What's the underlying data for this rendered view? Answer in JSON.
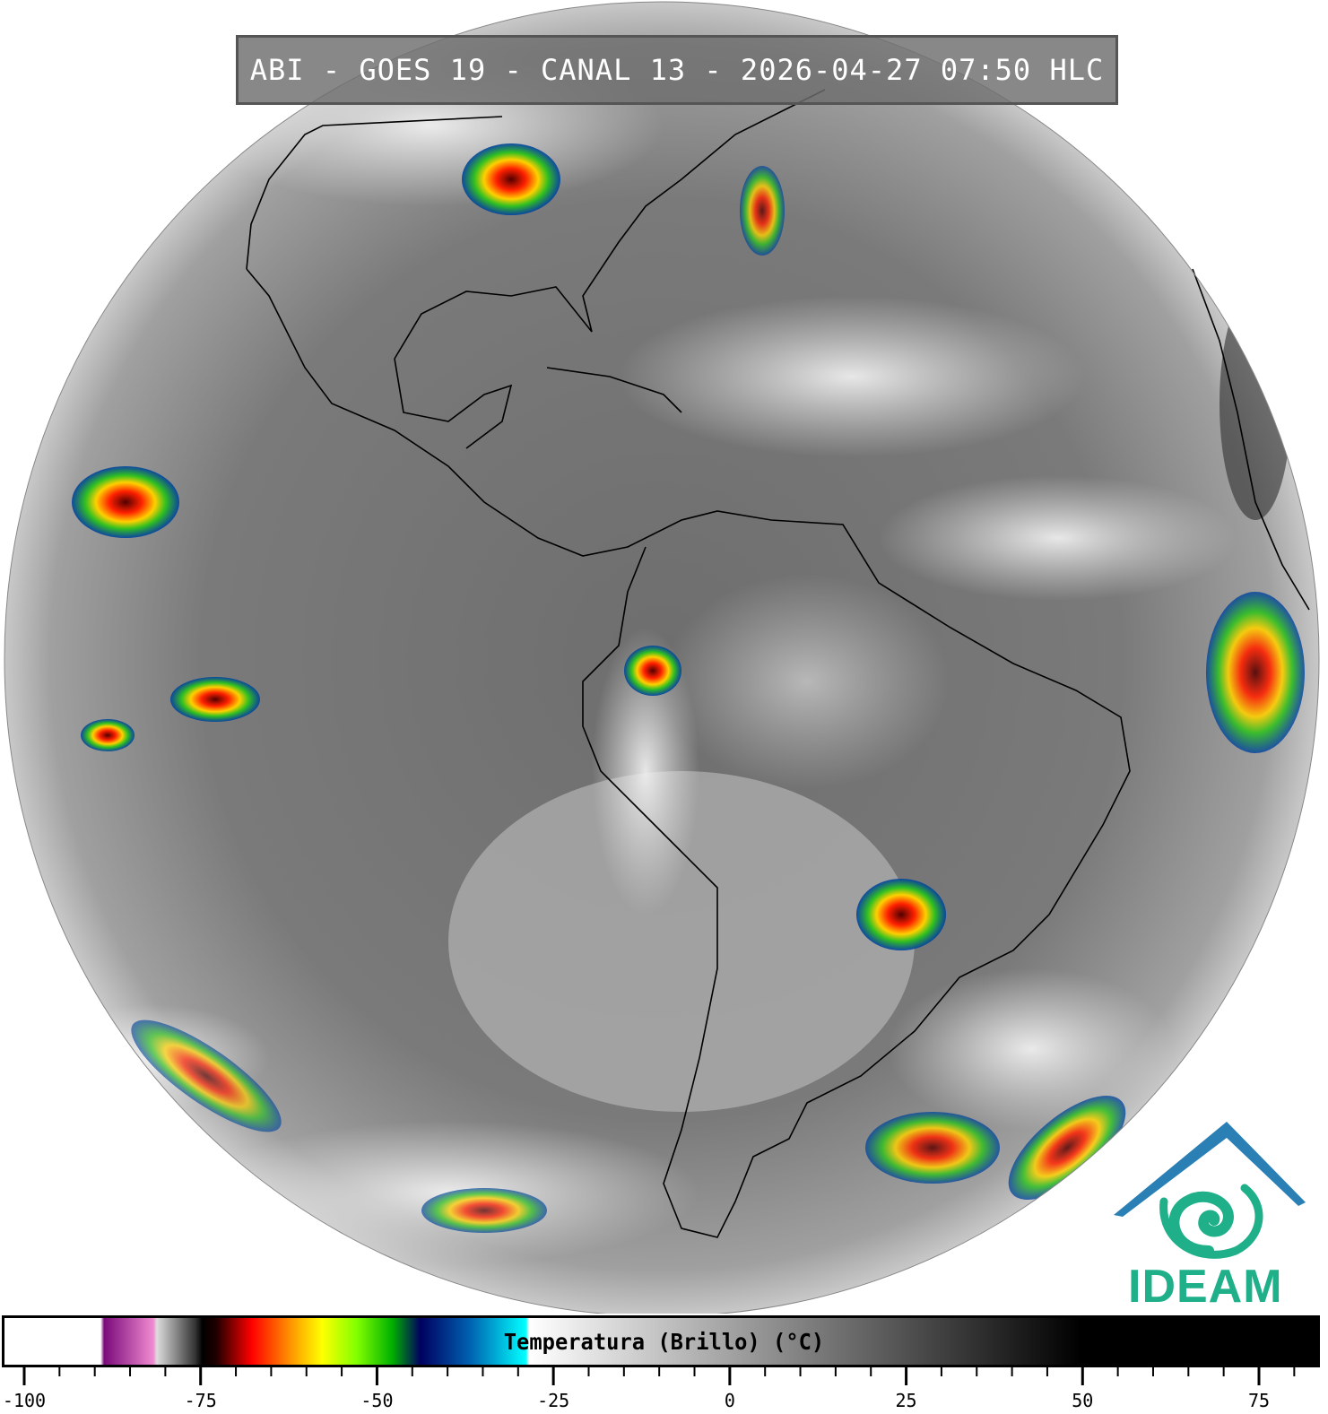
{
  "title": "ABI - GOES 19 - CANAL 13 - 2026-04-27 07:50 HLC",
  "logo": {
    "text": "IDEAM",
    "colors": {
      "roof": "#2a7fb5",
      "swirl": "#1fb08a"
    }
  },
  "colorbar": {
    "label": "Temperatura (Brillo) (°C)",
    "range": [
      -103,
      84
    ],
    "major_ticks": [
      -100,
      -75,
      -50,
      -25,
      0,
      25,
      50,
      75
    ],
    "tick_labels": [
      "-100",
      "-75",
      "-50",
      "-25",
      "0",
      "25",
      "50",
      "75"
    ],
    "minor_tick_step": 5,
    "stops": [
      {
        "t": -103,
        "color": "#ffffff"
      },
      {
        "t": -89.5,
        "color": "#ffffff"
      },
      {
        "t": -89,
        "color": "#7a0a7a"
      },
      {
        "t": -82,
        "color": "#f08ad0"
      },
      {
        "t": -81.5,
        "color": "#dddddd"
      },
      {
        "t": -76,
        "color": "#333333"
      },
      {
        "t": -75,
        "color": "#000000"
      },
      {
        "t": -73,
        "color": "#200000"
      },
      {
        "t": -68,
        "color": "#ff0000"
      },
      {
        "t": -62,
        "color": "#ffa000"
      },
      {
        "t": -58,
        "color": "#ffff00"
      },
      {
        "t": -53,
        "color": "#80ff00"
      },
      {
        "t": -48,
        "color": "#00b000"
      },
      {
        "t": -44,
        "color": "#000060"
      },
      {
        "t": -37,
        "color": "#0060b0"
      },
      {
        "t": -29,
        "color": "#00ffff"
      },
      {
        "t": -28.5,
        "color": "#ffffff"
      },
      {
        "t": 50,
        "color": "#000000"
      },
      {
        "t": 84,
        "color": "#000000"
      }
    ]
  },
  "image": {
    "type": "satellite infrared full disk",
    "region": "Americas"
  }
}
